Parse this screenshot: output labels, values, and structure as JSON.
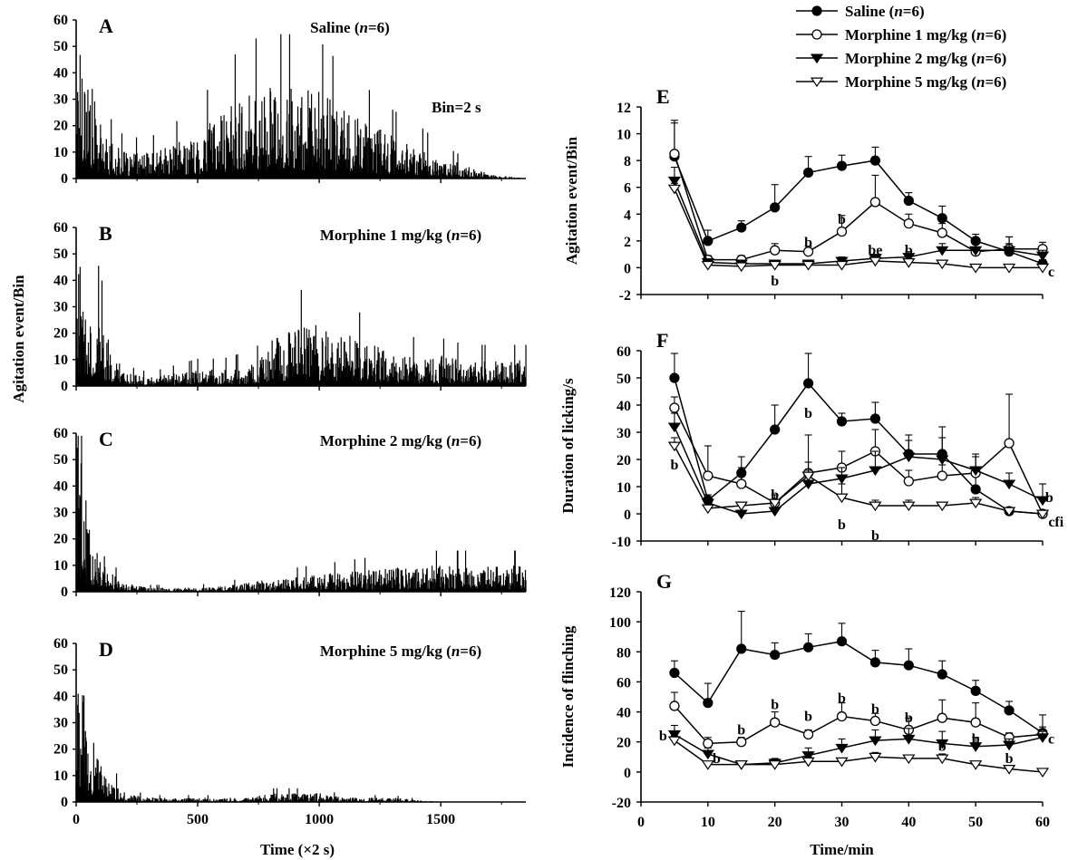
{
  "figure": {
    "shared_ylabel_left": "Agitation event/Bin",
    "legend": [
      {
        "name": "Saline (n=6)",
        "marker": "filled-circle"
      },
      {
        "name": "Morphine 1 mg/kg (n=6)",
        "marker": "open-circle"
      },
      {
        "name": "Morphine 2 mg/kg (n=6)",
        "marker": "filled-triangle-down"
      },
      {
        "name": "Morphine 5 mg/kg (n=6)",
        "marker": "open-triangle-down"
      }
    ]
  },
  "chart_data": [
    {
      "type": "bar",
      "panel": "A",
      "title": "Saline (n=6)",
      "annotation": "Bin=2 s",
      "xlim": [
        0,
        1850
      ],
      "ylim": [
        0,
        60
      ],
      "xticks": [
        0,
        500,
        1000,
        1500
      ],
      "yticks": [
        0,
        10,
        20,
        30,
        40,
        50,
        60
      ],
      "xlabel": "",
      "envelope": [
        [
          0,
          36
        ],
        [
          30,
          34
        ],
        [
          60,
          22
        ],
        [
          100,
          12
        ],
        [
          150,
          8
        ],
        [
          200,
          6
        ],
        [
          300,
          6
        ],
        [
          400,
          8
        ],
        [
          500,
          11
        ],
        [
          600,
          16
        ],
        [
          700,
          20
        ],
        [
          800,
          21
        ],
        [
          900,
          21
        ],
        [
          1000,
          20
        ],
        [
          1100,
          16
        ],
        [
          1200,
          13
        ],
        [
          1300,
          10
        ],
        [
          1400,
          8
        ],
        [
          1500,
          5
        ],
        [
          1600,
          3
        ],
        [
          1700,
          1
        ],
        [
          1850,
          0
        ]
      ]
    },
    {
      "type": "bar",
      "panel": "B",
      "title": "Morphine 1 mg/kg (n=6)",
      "xlim": [
        0,
        1850
      ],
      "ylim": [
        0,
        60
      ],
      "xticks": [
        0,
        500,
        1000,
        1500
      ],
      "yticks": [
        0,
        10,
        20,
        30,
        40,
        50,
        60
      ],
      "xlabel": "",
      "envelope": [
        [
          0,
          30
        ],
        [
          30,
          28
        ],
        [
          60,
          22
        ],
        [
          100,
          16
        ],
        [
          150,
          8
        ],
        [
          200,
          3
        ],
        [
          300,
          2
        ],
        [
          400,
          3
        ],
        [
          500,
          4
        ],
        [
          600,
          4
        ],
        [
          700,
          5
        ],
        [
          750,
          6
        ],
        [
          800,
          11
        ],
        [
          900,
          14
        ],
        [
          1000,
          14
        ],
        [
          1100,
          12
        ],
        [
          1200,
          10
        ],
        [
          1300,
          8
        ],
        [
          1400,
          7
        ],
        [
          1500,
          7
        ],
        [
          1600,
          6
        ],
        [
          1700,
          6
        ],
        [
          1850,
          6
        ]
      ]
    },
    {
      "type": "bar",
      "panel": "C",
      "title": "Morphine 2 mg/kg (n=6)",
      "xlim": [
        0,
        1850
      ],
      "ylim": [
        0,
        60
      ],
      "xticks": [
        0,
        500,
        1000,
        1500
      ],
      "yticks": [
        0,
        10,
        20,
        30,
        40,
        50,
        60
      ],
      "xlabel": "",
      "envelope": [
        [
          0,
          40
        ],
        [
          20,
          30
        ],
        [
          50,
          18
        ],
        [
          100,
          10
        ],
        [
          150,
          4
        ],
        [
          200,
          2
        ],
        [
          300,
          1
        ],
        [
          500,
          1
        ],
        [
          700,
          2
        ],
        [
          800,
          3
        ],
        [
          1000,
          4
        ],
        [
          1200,
          5
        ],
        [
          1400,
          6
        ],
        [
          1600,
          6
        ],
        [
          1850,
          6
        ]
      ]
    },
    {
      "type": "bar",
      "panel": "D",
      "title": "Morphine 5 mg/kg (n=6)",
      "xlim": [
        0,
        1850
      ],
      "ylim": [
        0,
        60
      ],
      "xticks": [
        0,
        500,
        1000,
        1500
      ],
      "yticks": [
        0,
        10,
        20,
        30,
        40,
        50,
        60
      ],
      "xlabel": "Time (×2 s)",
      "envelope": [
        [
          0,
          45
        ],
        [
          20,
          30
        ],
        [
          50,
          16
        ],
        [
          100,
          10
        ],
        [
          150,
          5
        ],
        [
          200,
          2
        ],
        [
          300,
          1
        ],
        [
          500,
          1
        ],
        [
          700,
          1
        ],
        [
          800,
          2
        ],
        [
          1000,
          2
        ],
        [
          1100,
          1
        ],
        [
          1300,
          1
        ],
        [
          1500,
          0
        ],
        [
          1850,
          0
        ]
      ]
    },
    {
      "type": "line",
      "panel": "E",
      "ylabel": "Agitation event/Bin",
      "xlabel": "",
      "xlim": [
        0,
        60
      ],
      "ylim": [
        -2,
        12
      ],
      "xticks": [
        0,
        10,
        20,
        30,
        40,
        50,
        60
      ],
      "yticks": [
        -2,
        0,
        2,
        4,
        6,
        8,
        10,
        12
      ],
      "x": [
        5,
        10,
        15,
        20,
        25,
        30,
        35,
        40,
        45,
        50,
        55,
        60
      ],
      "series": [
        {
          "name": "Saline (n=6)",
          "values": [
            8.3,
            2.0,
            3.0,
            4.5,
            7.1,
            7.6,
            8.0,
            5.0,
            3.7,
            2.0,
            1.2,
            0.3
          ],
          "err": [
            2.7,
            0.8,
            0.5,
            1.7,
            1.2,
            0.8,
            1.0,
            0.6,
            0.9,
            0.5,
            1.1,
            0.3
          ]
        },
        {
          "name": "Morphine 1 mg/kg (n=6)",
          "values": [
            8.5,
            0.6,
            0.6,
            1.3,
            1.2,
            2.7,
            4.9,
            3.3,
            2.6,
            1.2,
            1.4,
            1.4
          ],
          "err": [
            2.3,
            0.3,
            0.3,
            0.5,
            0.4,
            1.2,
            2.0,
            0.7,
            0.7,
            0.9,
            0.9,
            0.5
          ]
        },
        {
          "name": "Morphine 2 mg/kg (n=6)",
          "values": [
            6.5,
            0.4,
            0.3,
            0.3,
            0.3,
            0.5,
            0.7,
            0.8,
            1.3,
            1.3,
            1.3,
            0.9
          ],
          "err": [
            1.0,
            0.2,
            0.2,
            0.2,
            0.2,
            0.3,
            0.3,
            0.4,
            0.5,
            0.5,
            0.5,
            0.4
          ]
        },
        {
          "name": "Morphine 5 mg/kg (n=6)",
          "values": [
            5.9,
            0.2,
            0.1,
            0.2,
            0.2,
            0.2,
            0.5,
            0.4,
            0.3,
            0.0,
            0.0,
            0.0
          ],
          "err": [
            0.4,
            0.2,
            0.1,
            0.1,
            0.1,
            0.2,
            0.2,
            0.2,
            0.2,
            0.0,
            0.0,
            0.0
          ]
        }
      ],
      "annotations": [
        {
          "text": "b",
          "x": 20,
          "y": -1.0
        },
        {
          "text": "b",
          "x": 25,
          "y": 1.9
        },
        {
          "text": "b",
          "x": 30,
          "y": 3.6
        },
        {
          "text": "be",
          "x": 35,
          "y": 1.3
        },
        {
          "text": "b",
          "x": 40,
          "y": 1.3
        },
        {
          "text": "c",
          "x": 61.3,
          "y": -0.3
        }
      ]
    },
    {
      "type": "line",
      "panel": "F",
      "ylabel": "Duration of licking/s",
      "xlabel": "",
      "xlim": [
        0,
        60
      ],
      "ylim": [
        -10,
        60
      ],
      "xticks": [
        0,
        10,
        20,
        30,
        40,
        50,
        60
      ],
      "yticks": [
        -10,
        0,
        10,
        20,
        30,
        40,
        50,
        60
      ],
      "x": [
        5,
        10,
        15,
        20,
        25,
        30,
        35,
        40,
        45,
        50,
        55,
        60
      ],
      "series": [
        {
          "name": "Saline (n=6)",
          "values": [
            50,
            5,
            15,
            31,
            48,
            34,
            35,
            22,
            22,
            9,
            1,
            0
          ],
          "err": [
            9,
            2,
            6,
            9,
            11,
            3,
            6,
            7,
            10,
            8,
            1,
            1
          ]
        },
        {
          "name": "Morphine 1 mg/kg (n=6)",
          "values": [
            39,
            14,
            11,
            4,
            15,
            17,
            23,
            12,
            14,
            15,
            26,
            0
          ],
          "err": [
            4,
            11,
            6,
            3,
            4,
            6,
            8,
            4,
            4,
            7,
            18,
            1
          ]
        },
        {
          "name": "Morphine 2 mg/kg (n=6)",
          "values": [
            32,
            4,
            0,
            1,
            11,
            13,
            16,
            21,
            20,
            16,
            11,
            5
          ],
          "err": [
            5,
            2,
            1,
            1,
            18,
            4,
            7,
            6,
            8,
            5,
            4,
            6
          ]
        },
        {
          "name": "Morphine 5 mg/kg (n=6)",
          "values": [
            25,
            2,
            3,
            4,
            14,
            6,
            3,
            3,
            3,
            4,
            1,
            0
          ],
          "err": [
            3,
            1,
            1,
            1,
            2,
            5,
            2,
            2,
            1,
            2,
            1,
            1
          ]
        }
      ],
      "annotations": [
        {
          "text": "b",
          "x": 5,
          "y": 18
        },
        {
          "text": "b",
          "x": 20,
          "y": 7
        },
        {
          "text": "b",
          "x": 25,
          "y": 37
        },
        {
          "text": "b",
          "x": 30,
          "y": -4
        },
        {
          "text": "b",
          "x": 35,
          "y": -8
        },
        {
          "text": "b",
          "x": 61,
          "y": 6
        },
        {
          "text": "cfi",
          "x": 62,
          "y": -3
        }
      ]
    },
    {
      "type": "line",
      "panel": "G",
      "ylabel": "Incidence of flinching",
      "xlabel": "Time/min",
      "xlim": [
        0,
        60
      ],
      "ylim": [
        -20,
        120
      ],
      "xticks": [
        0,
        10,
        20,
        30,
        40,
        50,
        60
      ],
      "yticks": [
        -20,
        0,
        20,
        40,
        60,
        80,
        100,
        120
      ],
      "x": [
        5,
        10,
        15,
        20,
        25,
        30,
        35,
        40,
        45,
        50,
        55,
        60
      ],
      "series": [
        {
          "name": "Saline (n=6)",
          "values": [
            66,
            46,
            82,
            78,
            83,
            87,
            73,
            71,
            65,
            54,
            41,
            26
          ],
          "err": [
            8,
            13,
            25,
            8,
            9,
            12,
            8,
            11,
            9,
            7,
            6,
            12
          ]
        },
        {
          "name": "Morphine 1 mg/kg (n=6)",
          "values": [
            44,
            19,
            20,
            33,
            25,
            37,
            34,
            28,
            36,
            33,
            23,
            25
          ],
          "err": [
            9,
            4,
            3,
            7,
            3,
            9,
            5,
            8,
            12,
            13,
            3,
            5
          ]
        },
        {
          "name": "Morphine 2 mg/kg (n=6)",
          "values": [
            25,
            12,
            5,
            6,
            11,
            16,
            21,
            22,
            19,
            17,
            18,
            23
          ],
          "err": [
            6,
            4,
            2,
            3,
            5,
            6,
            7,
            7,
            8,
            6,
            4,
            4
          ]
        },
        {
          "name": "Morphine 5 mg/kg (n=6)",
          "values": [
            21,
            5,
            5,
            5,
            7,
            7,
            10,
            9,
            9,
            5,
            2,
            0
          ],
          "err": [
            3,
            2,
            2,
            2,
            3,
            2,
            3,
            2,
            3,
            2,
            2,
            1
          ]
        }
      ],
      "annotations": [
        {
          "text": "b",
          "x": 3.3,
          "y": 24
        },
        {
          "text": "b",
          "x": 11.3,
          "y": 9
        },
        {
          "text": "b",
          "x": 15,
          "y": 28
        },
        {
          "text": "b",
          "x": 20,
          "y": 45
        },
        {
          "text": "b",
          "x": 25,
          "y": 37
        },
        {
          "text": "b",
          "x": 30,
          "y": 49
        },
        {
          "text": "b",
          "x": 35,
          "y": 42
        },
        {
          "text": "b",
          "x": 40,
          "y": 36
        },
        {
          "text": "b",
          "x": 45,
          "y": 17
        },
        {
          "text": "b",
          "x": 50,
          "y": 22
        },
        {
          "text": "b",
          "x": 55,
          "y": 9
        },
        {
          "text": "c",
          "x": 61.3,
          "y": 22
        }
      ]
    }
  ]
}
